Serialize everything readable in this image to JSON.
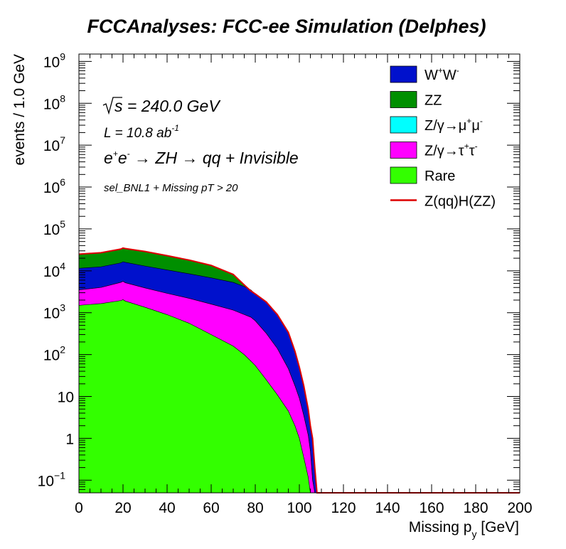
{
  "chart_data": {
    "type": "area",
    "stacked": true,
    "log_y": true,
    "title": "FCCAnalyses: FCC-ee Simulation (Delphes)",
    "xlabel": {
      "main": "Missing p",
      "sub": "y",
      "unit": " [GeV]"
    },
    "ylabel": "events / 1.0 GeV",
    "xlim": [
      0,
      200
    ],
    "ylim": [
      0.05,
      1500000000.0
    ],
    "x_ticks": [
      0,
      20,
      40,
      60,
      80,
      100,
      120,
      140,
      160,
      180,
      200
    ],
    "x_tick_labels": [
      "0",
      "20",
      "40",
      "60",
      "80",
      "100",
      "120",
      "140",
      "160",
      "180",
      "200"
    ],
    "y_ticks": [
      {
        "value": 0.1,
        "base": "10",
        "exp": "−1"
      },
      {
        "value": 1,
        "base": "1",
        "exp": ""
      },
      {
        "value": 10,
        "base": "10",
        "exp": ""
      },
      {
        "value": 100,
        "base": "10",
        "exp": "2"
      },
      {
        "value": 1000,
        "base": "10",
        "exp": "3"
      },
      {
        "value": 10000,
        "base": "10",
        "exp": "4"
      },
      {
        "value": 100000,
        "base": "10",
        "exp": "5"
      },
      {
        "value": 1000000,
        "base": "10",
        "exp": "6"
      },
      {
        "value": 10000000,
        "base": "10",
        "exp": "7"
      },
      {
        "value": 100000000,
        "base": "10",
        "exp": "8"
      },
      {
        "value": 1000000000,
        "base": "10",
        "exp": "9"
      }
    ],
    "grid": false,
    "legend_position": "top-right",
    "x": [
      0,
      10,
      19,
      20,
      21,
      30,
      40,
      50,
      60,
      70,
      75,
      78,
      80,
      85,
      90,
      95,
      98,
      100,
      102,
      104,
      105,
      106,
      107,
      108,
      200
    ],
    "series": [
      {
        "name": "Rare",
        "color": "#33ff00",
        "values": [
          1500,
          1650,
          1950,
          2050,
          1900,
          1350,
          900,
          560,
          300,
          160,
          100,
          70,
          55,
          25,
          11,
          4.5,
          2,
          1,
          0.35,
          0.12,
          0.05,
          0.05,
          0.05,
          0.05,
          0.05
        ]
      },
      {
        "name": "Z/γ→τ+τ-",
        "color": "#ff00ff",
        "values": [
          3500,
          4000,
          5300,
          5600,
          5200,
          3900,
          2900,
          2200,
          1600,
          1150,
          900,
          780,
          640,
          320,
          140,
          46,
          18,
          9,
          3.5,
          1.2,
          0.5,
          0.1,
          0.05,
          0.05,
          0.05
        ]
      },
      {
        "name": "Z/γ→μ+μ-",
        "color": "#00ffff",
        "values": [
          3500,
          4000,
          5300,
          5600,
          5200,
          3900,
          2900,
          2200,
          1600,
          1150,
          900,
          780,
          640,
          320,
          140,
          46,
          18,
          9,
          3.5,
          1.2,
          0.5,
          0.1,
          0.05,
          0.05,
          0.05
        ]
      },
      {
        "name": "W+W-",
        "color": "#0011cc",
        "values": [
          11500,
          12500,
          15500,
          16500,
          16000,
          13000,
          10500,
          8500,
          6800,
          5300,
          4200,
          3500,
          2800,
          1800,
          900,
          340,
          120,
          50,
          18,
          5,
          2,
          1,
          0.2,
          0.05,
          0.05
        ]
      },
      {
        "name": "ZZ",
        "color": "#008f00",
        "values": [
          25000,
          27000,
          33000,
          35000,
          34000,
          29000,
          23000,
          18000,
          13500,
          8200,
          4600,
          3300,
          2800,
          1800,
          900,
          340,
          120,
          50,
          18,
          5,
          2,
          1,
          0.2,
          0.05,
          0.05
        ]
      }
    ],
    "signal": {
      "name": "Z(qq)H(ZZ)",
      "color": "#dd0000"
    },
    "legend": [
      {
        "label": "W",
        "sup1": "+",
        "label2": "W",
        "sup2": "-",
        "color": "#0011cc",
        "style": "box"
      },
      {
        "label": "ZZ",
        "color": "#008f00",
        "style": "box"
      },
      {
        "label": "Z/γ→μ",
        "sup1": "+",
        "label2": "μ",
        "sup2": "-",
        "color": "#00ffff",
        "style": "box"
      },
      {
        "label": "Z/γ→τ",
        "sup1": "+",
        "label2": "τ",
        "sup2": "-",
        "color": "#ff00ff",
        "style": "box"
      },
      {
        "label": "Rare",
        "color": "#33ff00",
        "style": "box"
      },
      {
        "label": "Z(qq)H(ZZ)",
        "color": "#dd0000",
        "style": "line"
      }
    ],
    "annotations": {
      "sqrt_s": "s",
      "sqrt_s_value": " = 240.0 GeV",
      "lumi": "L = 10.8 ab",
      "lumi_exp": "-1",
      "process": {
        "e1": "e",
        "sup_plus": "+",
        "e2": "e",
        "sup_minus": "-",
        "rest": "  → ZH  → qq + Invisible"
      },
      "selection": "sel_BNL1 + Missing pT > 20"
    }
  }
}
